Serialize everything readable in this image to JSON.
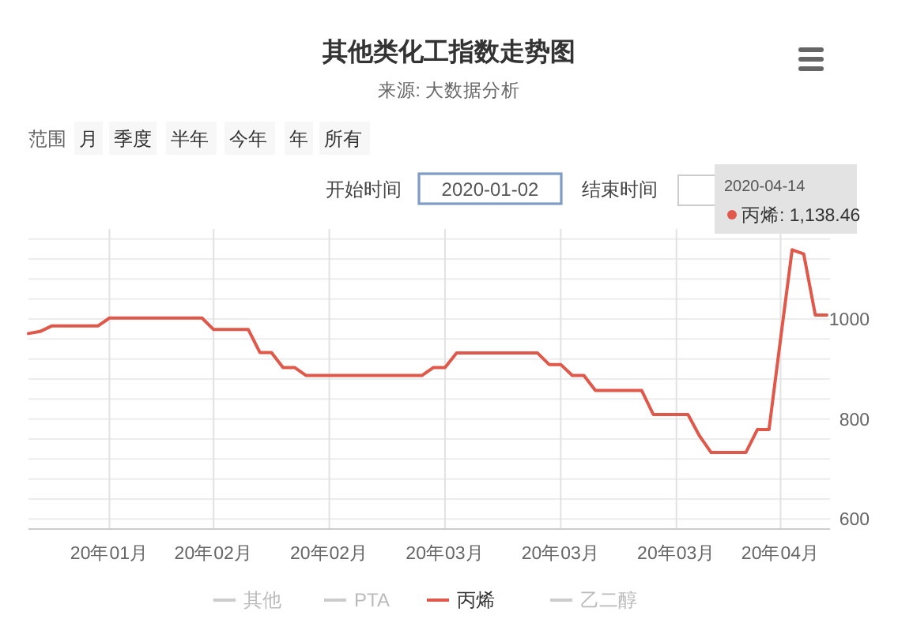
{
  "chart_data": {
    "type": "line",
    "title": "其他类化工指数走势图",
    "subtitle": "来源: 大数据分析",
    "categories": [
      null,
      null,
      null,
      null,
      null,
      null,
      null,
      "20年01月",
      null,
      null,
      null,
      null,
      null,
      null,
      null,
      null,
      "20年02月",
      null,
      null,
      null,
      null,
      null,
      null,
      null,
      null,
      null,
      "20年02月",
      null,
      null,
      null,
      null,
      null,
      null,
      null,
      null,
      null,
      "20年03月",
      null,
      null,
      null,
      null,
      null,
      null,
      null,
      null,
      null,
      "20年03月",
      null,
      null,
      null,
      null,
      null,
      null,
      null,
      null,
      null,
      "20年03月",
      null,
      null,
      null,
      null,
      null,
      null,
      null,
      null,
      "20年04月",
      null,
      null,
      null,
      null
    ],
    "series": [
      {
        "name": "其他",
        "color": "#cccccc",
        "values": [
          null,
          null,
          null,
          null,
          null,
          null,
          null,
          null,
          null,
          null,
          null,
          null,
          null,
          null,
          null,
          null,
          null,
          null,
          null,
          null,
          null,
          null,
          null,
          null,
          null,
          null,
          null,
          null,
          null,
          null,
          null,
          null,
          null,
          null,
          null,
          null,
          null,
          null,
          null,
          null,
          null,
          null,
          null,
          null,
          null,
          null,
          null,
          null,
          null,
          null,
          null,
          null,
          null,
          null,
          null,
          null,
          null,
          null,
          null,
          null,
          null,
          null,
          null,
          null,
          null,
          null,
          null,
          null,
          null,
          null
        ]
      },
      {
        "name": "PTA",
        "color": "#cccccc",
        "values": [
          null,
          null,
          null,
          null,
          null,
          null,
          null,
          null,
          null,
          null,
          null,
          null,
          null,
          null,
          null,
          null,
          null,
          null,
          null,
          null,
          null,
          null,
          null,
          null,
          null,
          null,
          null,
          null,
          null,
          null,
          null,
          null,
          null,
          null,
          null,
          null,
          null,
          null,
          null,
          null,
          null,
          null,
          null,
          null,
          null,
          null,
          null,
          null,
          null,
          null,
          null,
          null,
          null,
          null,
          null,
          null,
          null,
          null,
          null,
          null,
          null,
          null,
          null,
          null,
          null,
          null,
          null,
          null,
          null,
          null
        ]
      },
      {
        "name": "丙烯",
        "color": "#e0584a",
        "values": [
          971,
          975,
          986,
          986,
          986,
          986,
          986,
          1002,
          1002,
          1002,
          1002,
          1002,
          1002,
          1002,
          1002,
          1002,
          979,
          979,
          979,
          979,
          933,
          933,
          903,
          903,
          887,
          887,
          887,
          887,
          887,
          887,
          887,
          887,
          887,
          887,
          887,
          903,
          903,
          932,
          932,
          932,
          932,
          932,
          932,
          932,
          932,
          909,
          909,
          887,
          887,
          857,
          857,
          857,
          857,
          857,
          809,
          809,
          809,
          809,
          766,
          733,
          733,
          733,
          733,
          779,
          779,
          960,
          1138.46,
          1130,
          1008,
          1008
        ]
      },
      {
        "name": "乙二醇",
        "color": "#cccccc",
        "values": [
          null,
          null,
          null,
          null,
          null,
          null,
          null,
          null,
          null,
          null,
          null,
          null,
          null,
          null,
          null,
          null,
          null,
          null,
          null,
          null,
          null,
          null,
          null,
          null,
          null,
          null,
          null,
          null,
          null,
          null,
          null,
          null,
          null,
          null,
          null,
          null,
          null,
          null,
          null,
          null,
          null,
          null,
          null,
          null,
          null,
          null,
          null,
          null,
          null,
          null,
          null,
          null,
          null,
          null,
          null,
          null,
          null,
          null,
          null,
          null,
          null,
          null,
          null,
          null,
          null,
          null,
          null,
          null,
          null,
          null
        ]
      }
    ],
    "ylim": [
      580,
      1180
    ],
    "yticks": [
      {
        "value": 600,
        "label": "600"
      },
      {
        "value": 640,
        "label": null
      },
      {
        "value": 680,
        "label": null
      },
      {
        "value": 720,
        "label": null
      },
      {
        "value": 760,
        "label": null
      },
      {
        "value": 800,
        "label": "800"
      },
      {
        "value": 840,
        "label": null
      },
      {
        "value": 880,
        "label": null
      },
      {
        "value": 920,
        "label": null
      },
      {
        "value": 960,
        "label": null
      },
      {
        "value": 1000,
        "label": "1000"
      },
      {
        "value": 1040,
        "label": null
      },
      {
        "value": 1080,
        "label": null
      },
      {
        "value": 1120,
        "label": null
      },
      {
        "value": 1160,
        "label": null
      }
    ],
    "grid": true,
    "legend": "bottom",
    "annotations": [
      "范围",
      "月",
      "季度",
      "半年",
      "今年",
      "年",
      "所有",
      "开始时间",
      "2020-01-02",
      "结束时间",
      "2020-04-14",
      "丙烯: 1,138.46"
    ]
  }
}
